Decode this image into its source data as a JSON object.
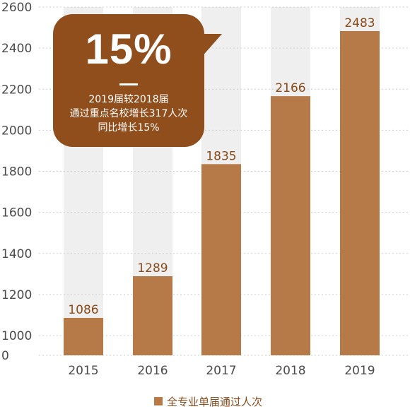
{
  "chart_data": {
    "type": "bar",
    "categories": [
      "2015",
      "2016",
      "2017",
      "2018",
      "2019"
    ],
    "series": [
      {
        "name": "全专业单届通过人次",
        "values": [
          1086,
          1289,
          1835,
          2166,
          2483
        ]
      }
    ],
    "y_ticks": [
      "0",
      "1000",
      "1200",
      "1400",
      "1600",
      "1800",
      "2000",
      "2200",
      "2400",
      "2600"
    ],
    "ylim": [
      0,
      2600
    ],
    "y_axis_break": "0 to 1000",
    "background_columns": true,
    "grid": "dotted horizontal",
    "legend_position": "bottom",
    "colors": {
      "bar": "#b57a48",
      "background_column": "#efefef",
      "callout": "#8f4e1b",
      "label": "#8a4a1a"
    }
  },
  "callout": {
    "headline": "15%",
    "line1": "2019届较2018届",
    "line2": "通过重点名校增长317人次",
    "line3": "同比增长15%"
  },
  "legend": {
    "label": "全专业单届通过人次"
  }
}
